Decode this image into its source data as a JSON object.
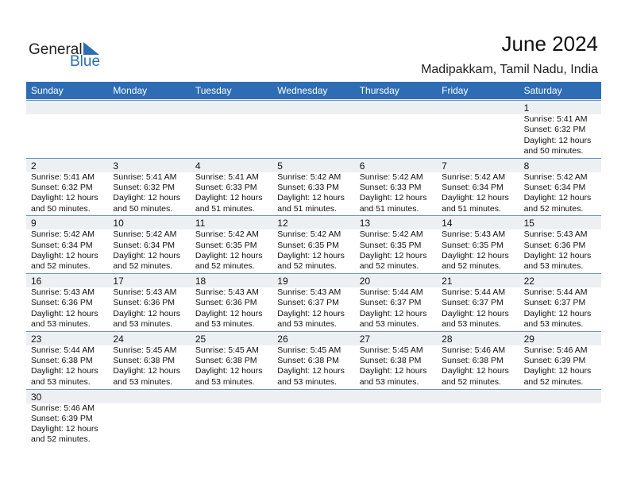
{
  "header": {
    "logo": [
      "General",
      "Blue"
    ],
    "title": "June 2024",
    "location": "Madipakkam, Tamil Nadu, India"
  },
  "weekdays": [
    "Sunday",
    "Monday",
    "Tuesday",
    "Wednesday",
    "Thursday",
    "Friday",
    "Saturday"
  ],
  "weeks": [
    [
      null,
      null,
      null,
      null,
      null,
      null,
      {
        "day": 1,
        "sunrise": "Sunrise: 5:41 AM",
        "sunset": "Sunset: 6:32 PM",
        "daylight": [
          "Daylight: 12 hours",
          "and 50 minutes."
        ]
      }
    ],
    [
      {
        "day": 2,
        "sunrise": "Sunrise: 5:41 AM",
        "sunset": "Sunset: 6:32 PM",
        "daylight": [
          "Daylight: 12 hours",
          "and 50 minutes."
        ]
      },
      {
        "day": 3,
        "sunrise": "Sunrise: 5:41 AM",
        "sunset": "Sunset: 6:32 PM",
        "daylight": [
          "Daylight: 12 hours",
          "and 50 minutes."
        ]
      },
      {
        "day": 4,
        "sunrise": "Sunrise: 5:41 AM",
        "sunset": "Sunset: 6:33 PM",
        "daylight": [
          "Daylight: 12 hours",
          "and 51 minutes."
        ]
      },
      {
        "day": 5,
        "sunrise": "Sunrise: 5:42 AM",
        "sunset": "Sunset: 6:33 PM",
        "daylight": [
          "Daylight: 12 hours",
          "and 51 minutes."
        ]
      },
      {
        "day": 6,
        "sunrise": "Sunrise: 5:42 AM",
        "sunset": "Sunset: 6:33 PM",
        "daylight": [
          "Daylight: 12 hours",
          "and 51 minutes."
        ]
      },
      {
        "day": 7,
        "sunrise": "Sunrise: 5:42 AM",
        "sunset": "Sunset: 6:34 PM",
        "daylight": [
          "Daylight: 12 hours",
          "and 51 minutes."
        ]
      },
      {
        "day": 8,
        "sunrise": "Sunrise: 5:42 AM",
        "sunset": "Sunset: 6:34 PM",
        "daylight": [
          "Daylight: 12 hours",
          "and 52 minutes."
        ]
      }
    ],
    [
      {
        "day": 9,
        "sunrise": "Sunrise: 5:42 AM",
        "sunset": "Sunset: 6:34 PM",
        "daylight": [
          "Daylight: 12 hours",
          "and 52 minutes."
        ]
      },
      {
        "day": 10,
        "sunrise": "Sunrise: 5:42 AM",
        "sunset": "Sunset: 6:34 PM",
        "daylight": [
          "Daylight: 12 hours",
          "and 52 minutes."
        ]
      },
      {
        "day": 11,
        "sunrise": "Sunrise: 5:42 AM",
        "sunset": "Sunset: 6:35 PM",
        "daylight": [
          "Daylight: 12 hours",
          "and 52 minutes."
        ]
      },
      {
        "day": 12,
        "sunrise": "Sunrise: 5:42 AM",
        "sunset": "Sunset: 6:35 PM",
        "daylight": [
          "Daylight: 12 hours",
          "and 52 minutes."
        ]
      },
      {
        "day": 13,
        "sunrise": "Sunrise: 5:42 AM",
        "sunset": "Sunset: 6:35 PM",
        "daylight": [
          "Daylight: 12 hours",
          "and 52 minutes."
        ]
      },
      {
        "day": 14,
        "sunrise": "Sunrise: 5:43 AM",
        "sunset": "Sunset: 6:35 PM",
        "daylight": [
          "Daylight: 12 hours",
          "and 52 minutes."
        ]
      },
      {
        "day": 15,
        "sunrise": "Sunrise: 5:43 AM",
        "sunset": "Sunset: 6:36 PM",
        "daylight": [
          "Daylight: 12 hours",
          "and 53 minutes."
        ]
      }
    ],
    [
      {
        "day": 16,
        "sunrise": "Sunrise: 5:43 AM",
        "sunset": "Sunset: 6:36 PM",
        "daylight": [
          "Daylight: 12 hours",
          "and 53 minutes."
        ]
      },
      {
        "day": 17,
        "sunrise": "Sunrise: 5:43 AM",
        "sunset": "Sunset: 6:36 PM",
        "daylight": [
          "Daylight: 12 hours",
          "and 53 minutes."
        ]
      },
      {
        "day": 18,
        "sunrise": "Sunrise: 5:43 AM",
        "sunset": "Sunset: 6:36 PM",
        "daylight": [
          "Daylight: 12 hours",
          "and 53 minutes."
        ]
      },
      {
        "day": 19,
        "sunrise": "Sunrise: 5:43 AM",
        "sunset": "Sunset: 6:37 PM",
        "daylight": [
          "Daylight: 12 hours",
          "and 53 minutes."
        ]
      },
      {
        "day": 20,
        "sunrise": "Sunrise: 5:44 AM",
        "sunset": "Sunset: 6:37 PM",
        "daylight": [
          "Daylight: 12 hours",
          "and 53 minutes."
        ]
      },
      {
        "day": 21,
        "sunrise": "Sunrise: 5:44 AM",
        "sunset": "Sunset: 6:37 PM",
        "daylight": [
          "Daylight: 12 hours",
          "and 53 minutes."
        ]
      },
      {
        "day": 22,
        "sunrise": "Sunrise: 5:44 AM",
        "sunset": "Sunset: 6:37 PM",
        "daylight": [
          "Daylight: 12 hours",
          "and 53 minutes."
        ]
      }
    ],
    [
      {
        "day": 23,
        "sunrise": "Sunrise: 5:44 AM",
        "sunset": "Sunset: 6:38 PM",
        "daylight": [
          "Daylight: 12 hours",
          "and 53 minutes."
        ]
      },
      {
        "day": 24,
        "sunrise": "Sunrise: 5:45 AM",
        "sunset": "Sunset: 6:38 PM",
        "daylight": [
          "Daylight: 12 hours",
          "and 53 minutes."
        ]
      },
      {
        "day": 25,
        "sunrise": "Sunrise: 5:45 AM",
        "sunset": "Sunset: 6:38 PM",
        "daylight": [
          "Daylight: 12 hours",
          "and 53 minutes."
        ]
      },
      {
        "day": 26,
        "sunrise": "Sunrise: 5:45 AM",
        "sunset": "Sunset: 6:38 PM",
        "daylight": [
          "Daylight: 12 hours",
          "and 53 minutes."
        ]
      },
      {
        "day": 27,
        "sunrise": "Sunrise: 5:45 AM",
        "sunset": "Sunset: 6:38 PM",
        "daylight": [
          "Daylight: 12 hours",
          "and 53 minutes."
        ]
      },
      {
        "day": 28,
        "sunrise": "Sunrise: 5:46 AM",
        "sunset": "Sunset: 6:38 PM",
        "daylight": [
          "Daylight: 12 hours",
          "and 52 minutes."
        ]
      },
      {
        "day": 29,
        "sunrise": "Sunrise: 5:46 AM",
        "sunset": "Sunset: 6:39 PM",
        "daylight": [
          "Daylight: 12 hours",
          "and 52 minutes."
        ]
      }
    ],
    [
      {
        "day": 30,
        "sunrise": "Sunrise: 5:46 AM",
        "sunset": "Sunset: 6:39 PM",
        "daylight": [
          "Daylight: 12 hours",
          "and 52 minutes."
        ]
      },
      null,
      null,
      null,
      null,
      null,
      null
    ]
  ]
}
